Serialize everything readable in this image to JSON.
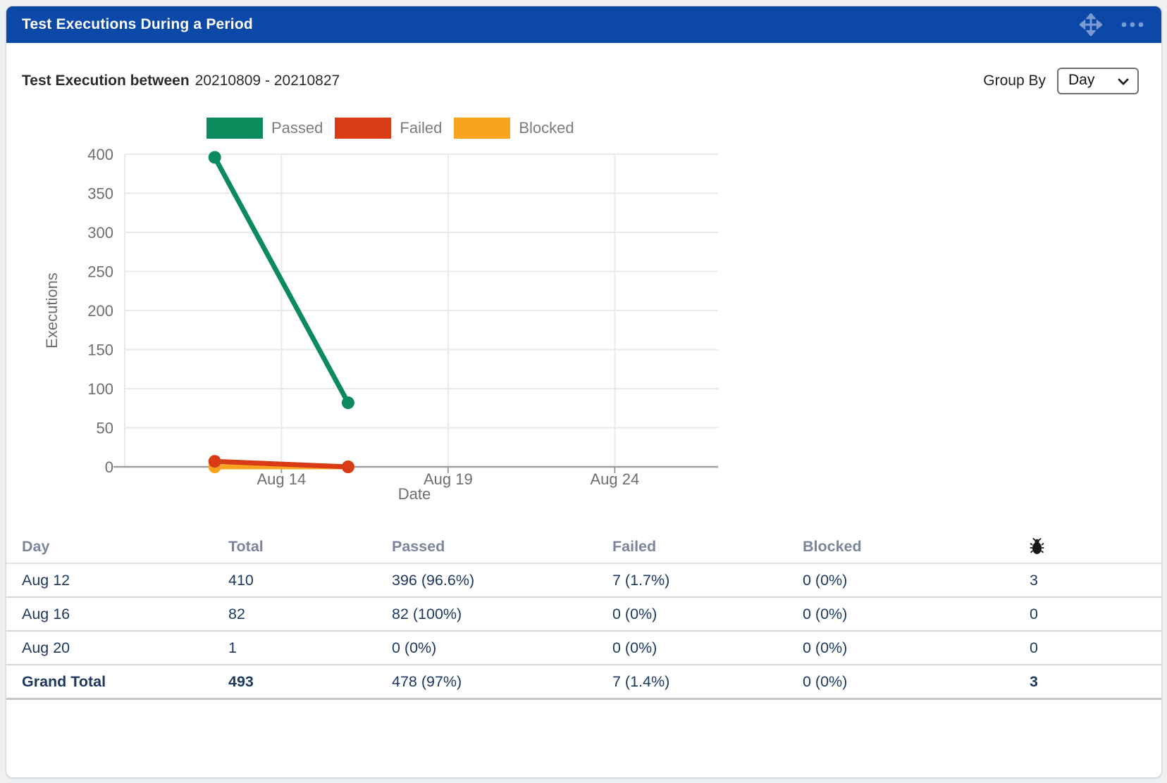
{
  "header": {
    "title": "Test Executions During a Period",
    "icons": [
      "move-icon",
      "more-options-icon"
    ]
  },
  "subtitle": {
    "label": "Test Execution between",
    "range": "20210809 - 20210827"
  },
  "group_by": {
    "label": "Group By",
    "value": "Day",
    "options_visible": [
      "Day"
    ]
  },
  "colors": {
    "header_bg": "#0b48a8",
    "header_icon": "#7d9bd3",
    "passed": "#0b8a5c",
    "failed": "#d93b17",
    "blocked": "#f8a41e",
    "axis": "#9b9ea3",
    "gridline": "#e8e9eb",
    "tick_text": "#6e6e6e",
    "table_text": "#1d3861",
    "table_header_text": "#7b869c"
  },
  "chart_data": {
    "type": "line",
    "title": "",
    "xlabel": "Date",
    "ylabel": "Executions",
    "ylim": [
      0,
      400
    ],
    "yticks": [
      0,
      50,
      100,
      150,
      200,
      250,
      300,
      350,
      400
    ],
    "grid": true,
    "legend_position": "top",
    "x_domain_days": {
      "min": 9.3,
      "max": 27.1,
      "month": "Aug"
    },
    "xticks": [
      {
        "label": "Aug 14",
        "day": 14
      },
      {
        "label": "Aug 19",
        "day": 19
      },
      {
        "label": "Aug 24",
        "day": 24
      }
    ],
    "series": [
      {
        "name": "Passed",
        "color": "#0b8a5c",
        "x_labels": [
          "Aug 12",
          "Aug 16"
        ],
        "x_days": [
          12,
          16
        ],
        "values": [
          396,
          82
        ]
      },
      {
        "name": "Failed",
        "color": "#d93b17",
        "x_labels": [
          "Aug 12",
          "Aug 16"
        ],
        "x_days": [
          12,
          16
        ],
        "values": [
          7,
          0
        ]
      },
      {
        "name": "Blocked",
        "color": "#f8a41e",
        "x_labels": [
          "Aug 12",
          "Aug 16"
        ],
        "x_days": [
          12,
          16
        ],
        "values": [
          0,
          0
        ]
      }
    ]
  },
  "table": {
    "columns": [
      "Day",
      "Total",
      "Passed",
      "Failed",
      "Blocked"
    ],
    "last_column_icon": "bug-icon",
    "rows": [
      [
        "Aug 12",
        "410",
        "396 (96.6%)",
        "7 (1.7%)",
        "0 (0%)",
        "3"
      ],
      [
        "Aug 16",
        "82",
        "82 (100%)",
        "0 (0%)",
        "0 (0%)",
        "0"
      ],
      [
        "Aug 20",
        "1",
        "0 (0%)",
        "0 (0%)",
        "0 (0%)",
        "0"
      ]
    ],
    "grand_total": [
      "Grand Total",
      "493",
      "478 (97%)",
      "7 (1.4%)",
      "0 (0%)",
      "3"
    ]
  }
}
